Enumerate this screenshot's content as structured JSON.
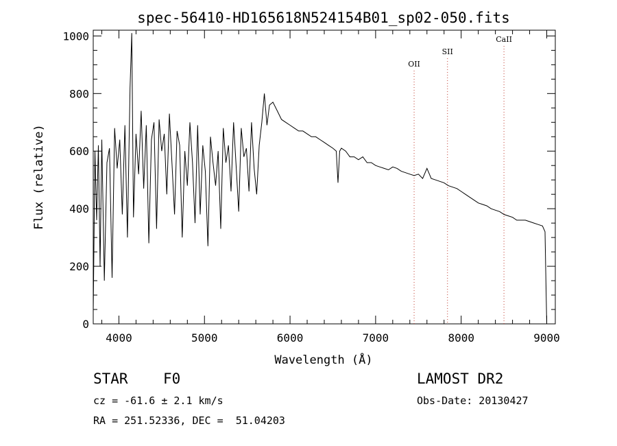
{
  "chart_data": {
    "type": "line",
    "title": "spec-56410-HD165618N524154B01_sp02-050.fits",
    "xlabel": "Wavelength (Å)",
    "ylabel": "Flux (relative)",
    "xlim": [
      3700,
      9100
    ],
    "ylim": [
      0,
      1020
    ],
    "xticks": [
      4000,
      5000,
      6000,
      7000,
      8000,
      9000
    ],
    "yticks": [
      0,
      200,
      400,
      600,
      800,
      1000
    ],
    "grid": false,
    "series": [
      {
        "x": [
          3700,
          3720,
          3740,
          3760,
          3780,
          3800,
          3830,
          3860,
          3890,
          3920,
          3950,
          3980,
          4010,
          4040,
          4070,
          4100,
          4130,
          4150,
          4170,
          4200,
          4230,
          4260,
          4290,
          4320,
          4350,
          4380,
          4410,
          4440,
          4470,
          4500,
          4530,
          4560,
          4590,
          4620,
          4650,
          4680,
          4710,
          4740,
          4770,
          4800,
          4830,
          4860,
          4890,
          4920,
          4950,
          4980,
          5010,
          5040,
          5070,
          5100,
          5130,
          5160,
          5190,
          5220,
          5250,
          5280,
          5310,
          5340,
          5370,
          5400,
          5430,
          5460,
          5490,
          5520,
          5550,
          5580,
          5610,
          5640,
          5670,
          5700,
          5730,
          5760,
          5800,
          5850,
          5900,
          5950,
          6000,
          6050,
          6100,
          6150,
          6200,
          6250,
          6300,
          6350,
          6400,
          6450,
          6500,
          6540,
          6560,
          6580,
          6600,
          6650,
          6700,
          6750,
          6800,
          6850,
          6900,
          6950,
          7000,
          7050,
          7100,
          7150,
          7200,
          7250,
          7300,
          7350,
          7400,
          7450,
          7500,
          7550,
          7600,
          7650,
          7700,
          7750,
          7800,
          7850,
          7900,
          7950,
          8000,
          8050,
          8100,
          8150,
          8200,
          8250,
          8300,
          8350,
          8400,
          8450,
          8500,
          8550,
          8600,
          8650,
          8700,
          8750,
          8800,
          8850,
          8900,
          8950,
          8980,
          8990,
          9000
        ],
        "y": [
          40,
          600,
          360,
          620,
          200,
          640,
          150,
          560,
          610,
          160,
          680,
          540,
          640,
          380,
          690,
          300,
          820,
          1010,
          370,
          660,
          520,
          740,
          470,
          690,
          280,
          640,
          700,
          330,
          710,
          600,
          660,
          450,
          730,
          560,
          380,
          670,
          620,
          300,
          600,
          480,
          700,
          560,
          350,
          690,
          380,
          620,
          530,
          270,
          650,
          560,
          480,
          600,
          330,
          680,
          560,
          620,
          460,
          700,
          550,
          390,
          680,
          580,
          610,
          460,
          700,
          540,
          450,
          620,
          700,
          800,
          690,
          760,
          770,
          740,
          710,
          700,
          690,
          680,
          670,
          670,
          660,
          650,
          650,
          640,
          630,
          620,
          610,
          600,
          490,
          600,
          610,
          600,
          580,
          580,
          570,
          580,
          560,
          560,
          550,
          545,
          540,
          535,
          545,
          540,
          530,
          525,
          520,
          515,
          520,
          505,
          540,
          505,
          500,
          495,
          490,
          480,
          475,
          470,
          460,
          450,
          440,
          430,
          420,
          415,
          410,
          400,
          395,
          390,
          380,
          375,
          370,
          360,
          360,
          360,
          355,
          350,
          345,
          340,
          320,
          150,
          0
        ]
      }
    ],
    "annotations": [
      {
        "label": "OII",
        "x": 7450
      },
      {
        "label": "SII",
        "x": 7840
      },
      {
        "label": "CaII",
        "x": 8500
      }
    ]
  },
  "info": {
    "object_type": "STAR",
    "subclass": "F0",
    "survey": "LAMOST DR2",
    "cz": "cz = -61.6 ± 2.1 km/s",
    "obs_date": "Obs-Date: 20130427",
    "coords": "RA = 251.52336, DEC =  51.04203"
  }
}
